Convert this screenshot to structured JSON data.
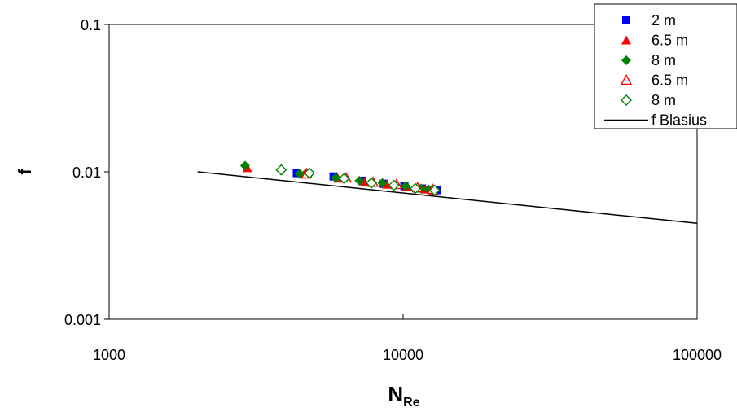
{
  "chart_data": {
    "type": "scatter",
    "title": "",
    "x_scale": "log",
    "y_scale": "log",
    "xlim": [
      1000,
      100000
    ],
    "ylim": [
      0.001,
      0.1
    ],
    "xlabel_main": "N",
    "xlabel_sub": "Re",
    "ylabel": "f",
    "x_tick_labels": [
      "1000",
      "10000",
      "100000"
    ],
    "x_ticks": [
      1000,
      10000,
      100000
    ],
    "y_tick_labels": [
      "0.001",
      "0.01",
      "0.1"
    ],
    "y_ticks": [
      0.001,
      0.01,
      0.1
    ],
    "grid": false,
    "legend_position": "top-right",
    "series": [
      {
        "name": "2 m",
        "marker": "square-filled",
        "color": "#0000ff",
        "points": [
          [
            4350,
            0.0098
          ],
          [
            5800,
            0.0093
          ],
          [
            7250,
            0.0087
          ],
          [
            8600,
            0.0083
          ],
          [
            10100,
            0.008
          ],
          [
            11600,
            0.0077
          ],
          [
            13000,
            0.0075
          ]
        ]
      },
      {
        "name": "6.5 m",
        "marker": "triangle-filled",
        "color": "#ff0000",
        "points": [
          [
            2950,
            0.0106
          ],
          [
            4600,
            0.0096
          ],
          [
            6000,
            0.009
          ],
          [
            7400,
            0.0085
          ],
          [
            8800,
            0.0082
          ],
          [
            10300,
            0.0079
          ],
          [
            11900,
            0.0076
          ],
          [
            12700,
            0.0074
          ]
        ]
      },
      {
        "name": "8 m",
        "marker": "diamond-filled",
        "color": "#008000",
        "points": [
          [
            2900,
            0.011
          ],
          [
            4450,
            0.0097
          ],
          [
            5900,
            0.0091
          ],
          [
            7100,
            0.0087
          ],
          [
            8500,
            0.0084
          ],
          [
            10200,
            0.008
          ],
          [
            11500,
            0.0077
          ],
          [
            12200,
            0.0076
          ]
        ]
      },
      {
        "name": "6.5 m",
        "marker": "triangle-open",
        "color": "#ff0000",
        "points": [
          [
            4700,
            0.0097
          ],
          [
            6400,
            0.0091
          ],
          [
            7900,
            0.0085
          ],
          [
            9500,
            0.0082
          ],
          [
            11200,
            0.0078
          ],
          [
            12600,
            0.0076
          ]
        ]
      },
      {
        "name": "8 m",
        "marker": "diamond-open",
        "color": "#008000",
        "points": [
          [
            3850,
            0.0103
          ],
          [
            4800,
            0.0098
          ],
          [
            6300,
            0.009
          ],
          [
            7800,
            0.0084
          ],
          [
            9300,
            0.0081
          ],
          [
            11000,
            0.0077
          ],
          [
            12800,
            0.0075
          ]
        ]
      },
      {
        "name": "f Blasius",
        "marker": "line",
        "color": "#000000",
        "points": [
          [
            2000,
            0.01
          ],
          [
            100000,
            0.00447
          ]
        ]
      }
    ]
  }
}
